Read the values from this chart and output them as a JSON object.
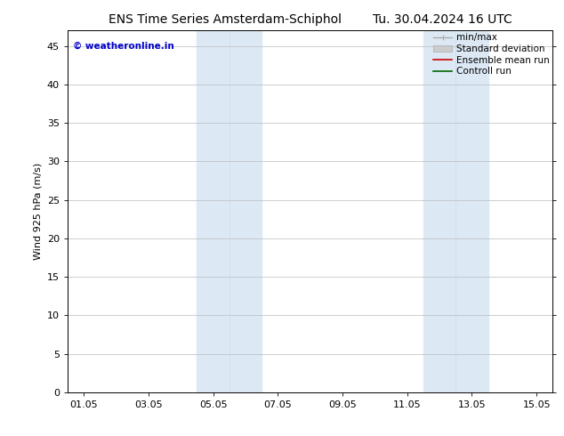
{
  "title_left": "ENS Time Series Amsterdam-Schiphol",
  "title_right": "Tu. 30.04.2024 16 UTC",
  "ylabel": "Wind 925 hPa (m/s)",
  "watermark": "© weatheronline.in",
  "watermark_color": "#0000cc",
  "ylim": [
    0,
    47
  ],
  "yticks": [
    0,
    5,
    10,
    15,
    20,
    25,
    30,
    35,
    40,
    45
  ],
  "xtick_labels": [
    "01.05",
    "03.05",
    "05.05",
    "07.05",
    "09.05",
    "11.05",
    "13.05",
    "15.05"
  ],
  "xmin": 0,
  "xmax": 14,
  "shaded_bands": [
    {
      "x_start": 3.5,
      "x_end": 4.5,
      "color": "#ddeeff"
    },
    {
      "x_start": 4.5,
      "x_end": 5.5,
      "color": "#ddeeff"
    },
    {
      "x_start": 10.5,
      "x_end": 11.5,
      "color": "#ddeeff"
    },
    {
      "x_start": 11.5,
      "x_end": 12.5,
      "color": "#ddeeff"
    }
  ],
  "bg_color": "#ffffff",
  "plot_bg_color": "#ffffff",
  "grid_color": "#bbbbbb",
  "border_color": "#000000",
  "title_fontsize": 10,
  "label_fontsize": 8,
  "tick_fontsize": 8,
  "legend_fontsize": 7.5
}
